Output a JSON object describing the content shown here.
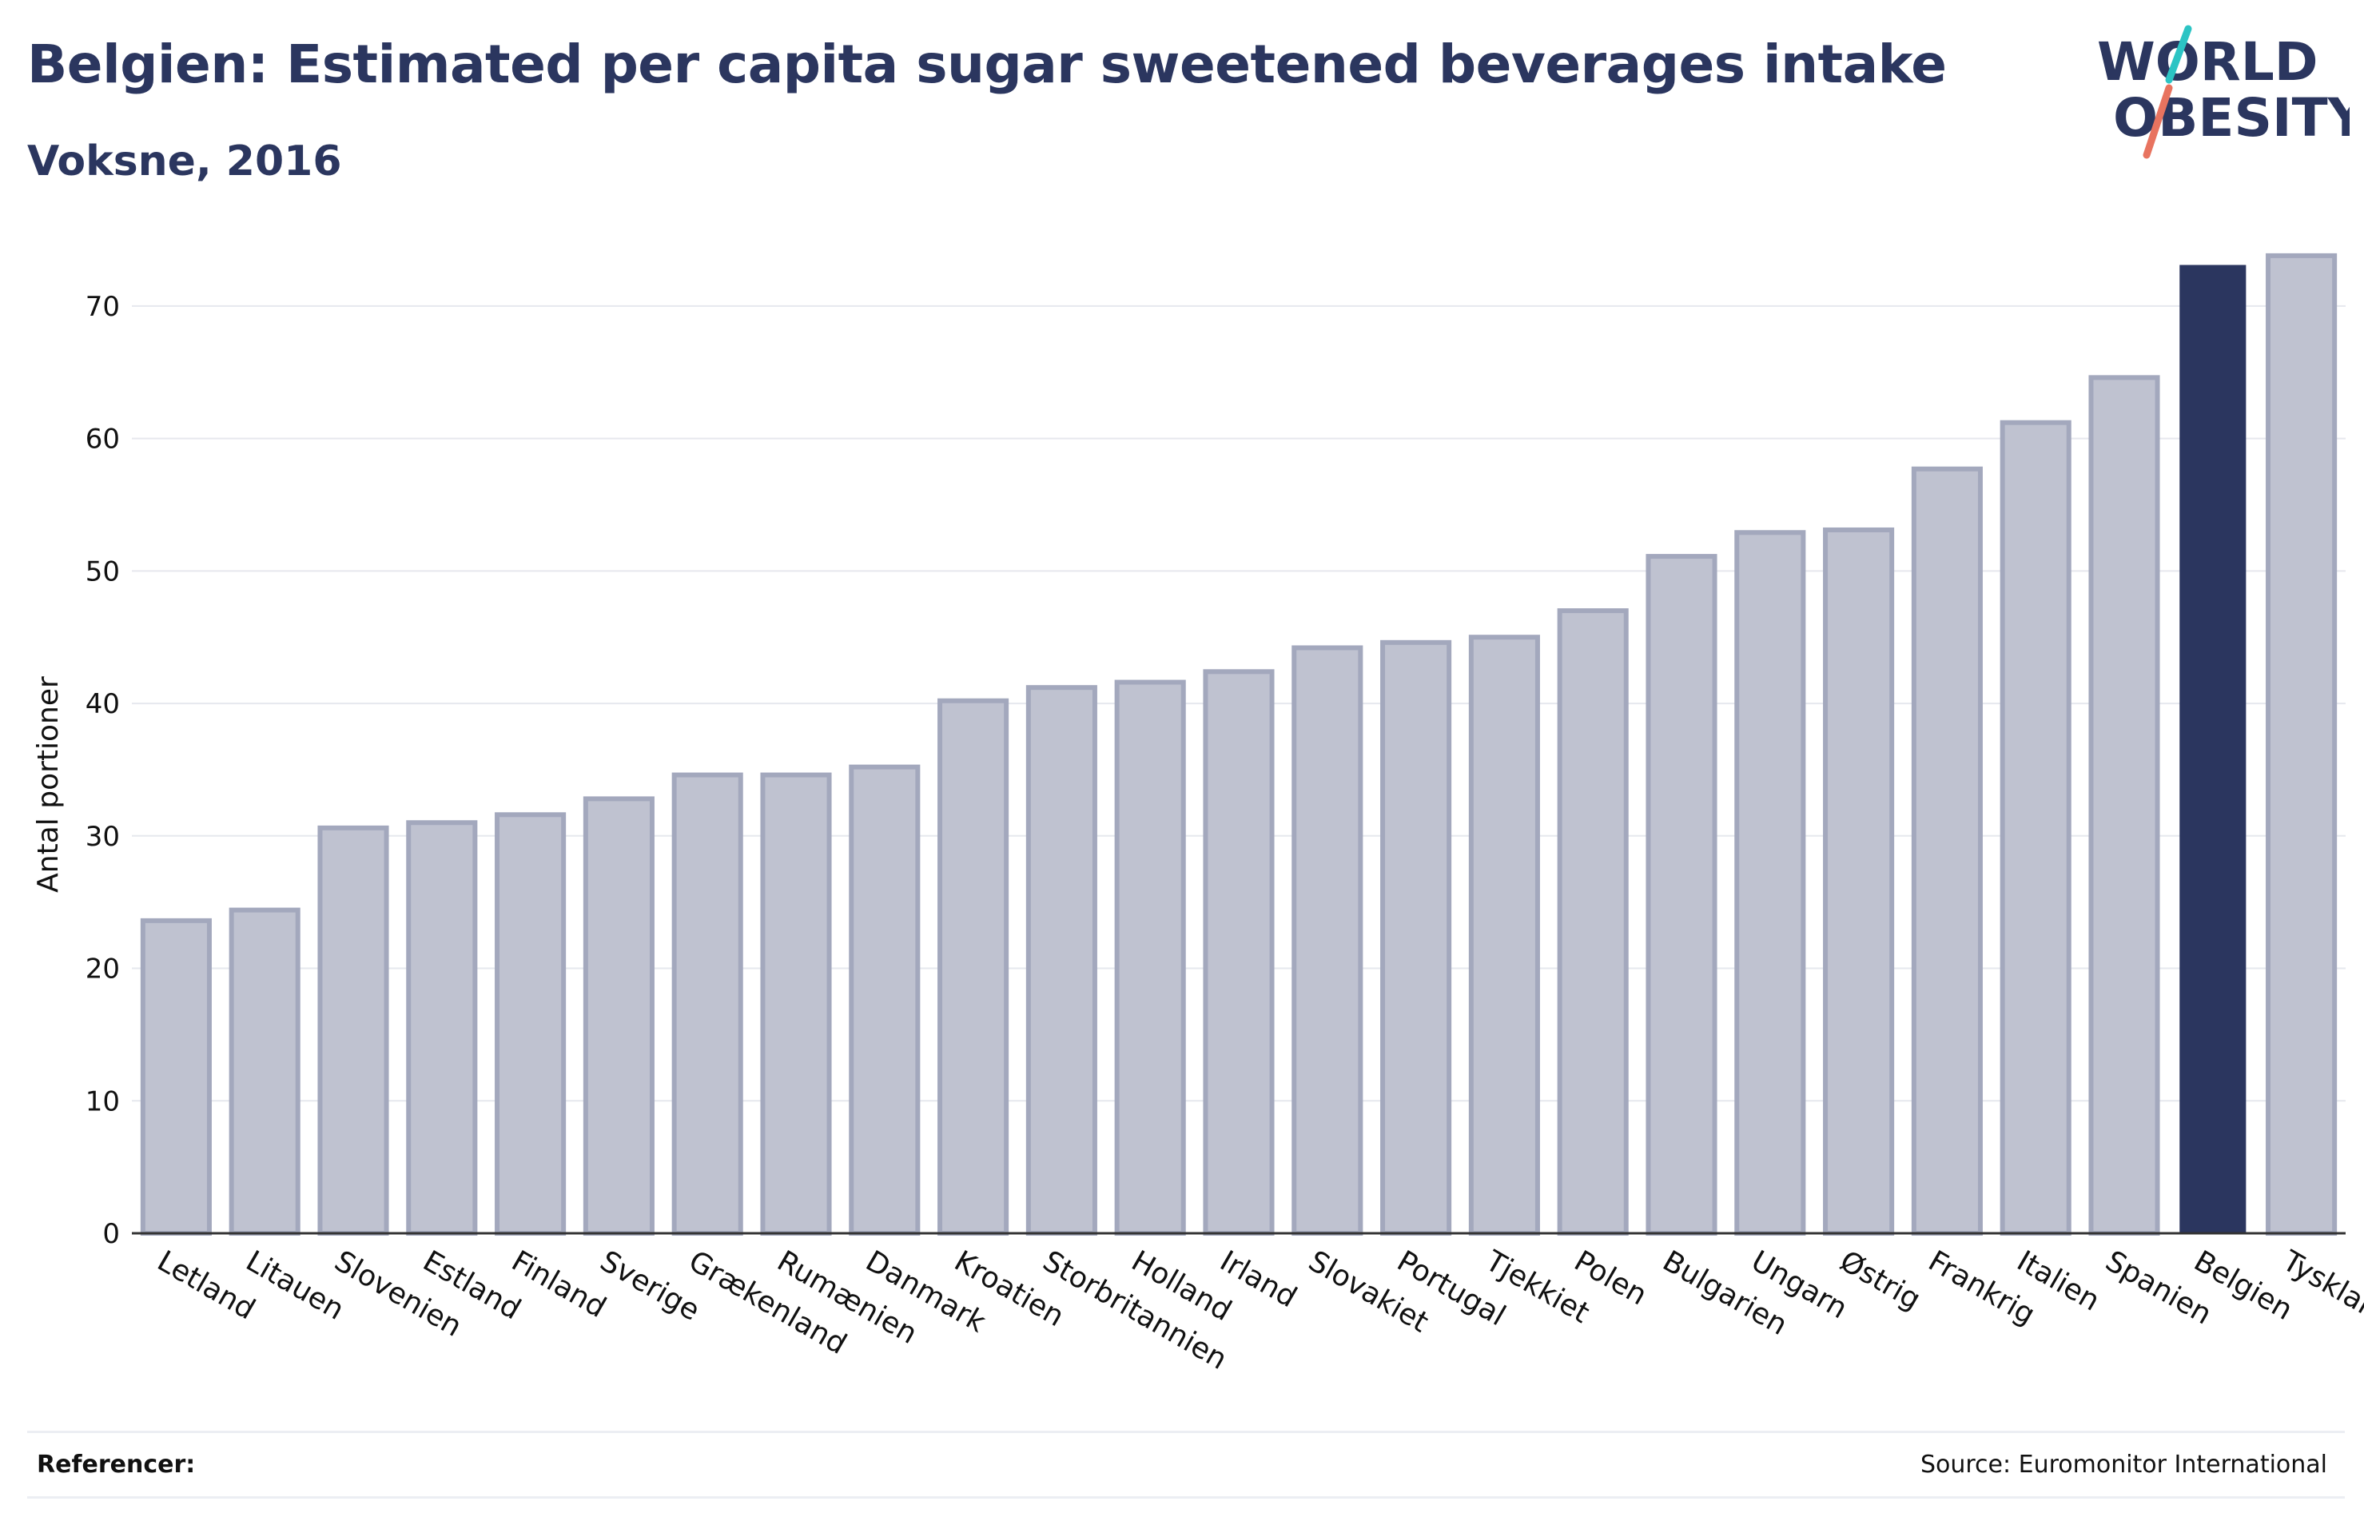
{
  "header": {
    "title": "Belgien: Estimated per capita sugar sweetened beverages intake",
    "subtitle": "Voksne, 2016"
  },
  "logo": {
    "line1": "WORLD",
    "line2": "OBESITY",
    "accent_colors": [
      "#2cc4c4",
      "#e8735f"
    ]
  },
  "colors": {
    "bar_default": "#bfc2d0",
    "bar_stroke": "#a3a8bd",
    "bar_highlight": "#2b365f",
    "text": "#2b365f",
    "grid": "#e6e8ee"
  },
  "chart_data": {
    "type": "bar",
    "title": "Belgien: Estimated per capita sugar sweetened beverages intake",
    "subtitle": "Voksne, 2016",
    "xlabel": "",
    "ylabel": "Antal portioner",
    "ylim": [
      0,
      75
    ],
    "yticks": [
      0,
      10,
      20,
      30,
      40,
      50,
      60,
      70
    ],
    "grid": true,
    "highlight": "Belgien",
    "categories": [
      "Letland",
      "Litauen",
      "Slovenien",
      "Estland",
      "Finland",
      "Sverige",
      "Grækenland",
      "Rumænien",
      "Danmark",
      "Kroatien",
      "Storbritannien",
      "Holland",
      "Irland",
      "Slovakiet",
      "Portugal",
      "Tjekkiet",
      "Polen",
      "Bulgarien",
      "Ungarn",
      "Østrig",
      "Frankrig",
      "Italien",
      "Spanien",
      "Belgien",
      "Tyskland"
    ],
    "values": [
      23.6,
      24.4,
      30.6,
      31.0,
      31.6,
      32.8,
      34.6,
      34.6,
      35.2,
      40.2,
      41.2,
      41.6,
      42.4,
      44.2,
      44.6,
      45.0,
      47.0,
      51.1,
      52.9,
      53.1,
      57.7,
      61.2,
      64.6,
      73.1,
      73.8
    ]
  },
  "footer": {
    "references_label": "Referencer:",
    "source": "Source: Euromonitor International"
  }
}
